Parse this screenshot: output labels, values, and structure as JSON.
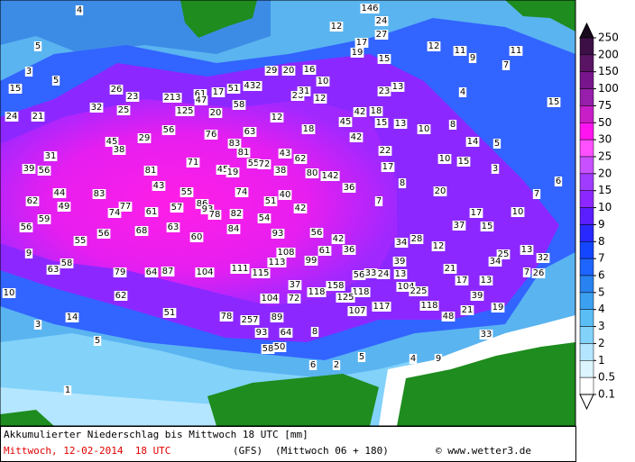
{
  "footer": {
    "title": "Akkumulierter Niederschlag bis Mittwoch 18 UTC [mm]",
    "date": "Mittwoch, 12-02-2014  18 UTC",
    "model": "(GFS)",
    "run": "(Mittwoch 06 + 180)",
    "credit": "© www.wetter3.de"
  },
  "colorbar": {
    "labels": [
      250,
      200,
      150,
      100,
      75,
      50,
      30,
      25,
      20,
      15,
      10,
      9,
      8,
      7,
      6,
      5,
      4,
      3,
      2,
      1,
      0.5,
      0.1
    ],
    "colors": [
      "#1a0a1e",
      "#3c1046",
      "#5a1464",
      "#78148c",
      "#961eaa",
      "#c81ec8",
      "#ff14f0",
      "#ff50ff",
      "#c850ff",
      "#a03cff",
      "#8c28ff",
      "#5a1eff",
      "#2828ff",
      "#1446ff",
      "#1e64ff",
      "#2882f0",
      "#3ca0f0",
      "#5abef5",
      "#82d2fa",
      "#b4e6ff",
      "#dcf5ff",
      "#ffffff",
      "#ffffff"
    ]
  },
  "map_labels": [
    4,
    146,
    24,
    27,
    12,
    17,
    19,
    15,
    12,
    11,
    11,
    9,
    7,
    5,
    3,
    5,
    15,
    26,
    23,
    32,
    25,
    213,
    61,
    17,
    51,
    432,
    29,
    20,
    16,
    10,
    26,
    31,
    12,
    47,
    58,
    125,
    20,
    24,
    21,
    12,
    18,
    45,
    42,
    18,
    15,
    13,
    23,
    13,
    4,
    15,
    10,
    8,
    14,
    5,
    56,
    76,
    63,
    83,
    45,
    38,
    29,
    31,
    81,
    55,
    72,
    43,
    62,
    42,
    22,
    10,
    15,
    3,
    39,
    56,
    71,
    81,
    45,
    19,
    38,
    80,
    142,
    17,
    8,
    36,
    20,
    7,
    6,
    44,
    83,
    43,
    55,
    74,
    40,
    51,
    62,
    49,
    77,
    74,
    61,
    57,
    86,
    93,
    78,
    82,
    42,
    7,
    17,
    10,
    59,
    54,
    37,
    15,
    56,
    56,
    68,
    63,
    84,
    93,
    56,
    42,
    60,
    55,
    28,
    34,
    12,
    25,
    13,
    108,
    61,
    36,
    9,
    58,
    39,
    34,
    32,
    63,
    79,
    64,
    87,
    104,
    111,
    115,
    113,
    99,
    56,
    33,
    24,
    13,
    21,
    17,
    13,
    7,
    26,
    10,
    62,
    37,
    118,
    158,
    118,
    104,
    225,
    104,
    72,
    125,
    39,
    107,
    117,
    118,
    21,
    19,
    14,
    51,
    78,
    257,
    89,
    48,
    3,
    93,
    64,
    8,
    33,
    5,
    58,
    50,
    5,
    4,
    9,
    6,
    2,
    1
  ]
}
